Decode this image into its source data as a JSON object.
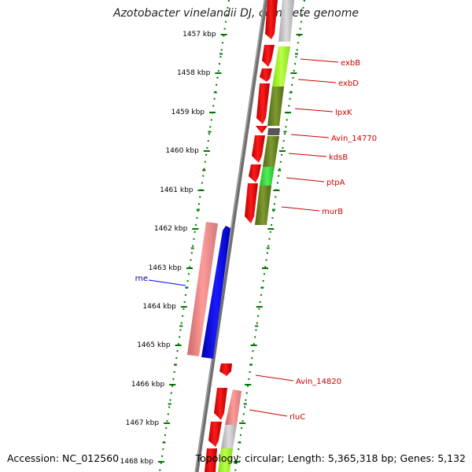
{
  "title": "Azotobacter vinelandii DJ, complete genome",
  "footer": {
    "accession": "Accession: NC_012560",
    "summary": "Topology: circular; Length: 5,365,318 bp; Genes: 5,132"
  },
  "ticks": [
    "1457 kbp",
    "1458 kbp",
    "1459 kbp",
    "1460 kbp",
    "1461 kbp",
    "1462 kbp",
    "1463 kbp",
    "1464 kbp",
    "1465 kbp",
    "1466 kbp",
    "1467 kbp",
    "1468 kbp"
  ],
  "genes_right": [
    "exbB",
    "exbD",
    "lpxK",
    "Avin_14770",
    "kdsB",
    "ptpA",
    "murB",
    "Avin_14820",
    "rluC"
  ],
  "genes_left": [
    "rne"
  ],
  "colors": {
    "forward_gene": "#ff0000",
    "reverse_gene": "#0000ff",
    "label_forward": "#cc0000",
    "label_reverse": "#000099",
    "tick": "#007700",
    "backbone": "#777777"
  }
}
